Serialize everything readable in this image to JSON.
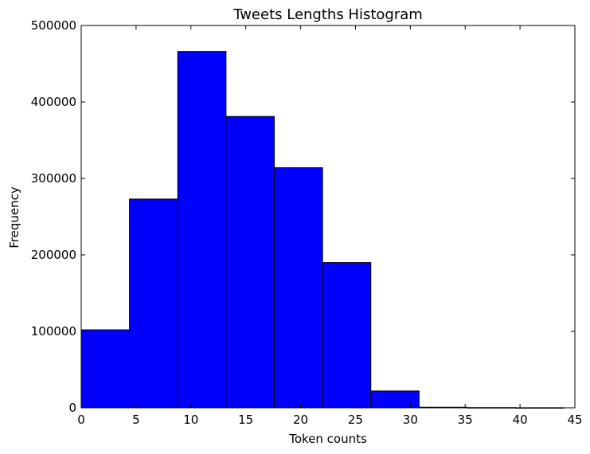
{
  "chart_data": {
    "type": "bar",
    "title": "Tweets Lengths Histogram",
    "xlabel": "Token counts",
    "ylabel": "Frequency",
    "xlim": [
      0,
      45
    ],
    "ylim": [
      0,
      500000
    ],
    "xticks": [
      0,
      5,
      10,
      15,
      20,
      25,
      30,
      35,
      40,
      45
    ],
    "yticks": [
      0,
      100000,
      200000,
      300000,
      400000,
      500000
    ],
    "bins": [
      {
        "start": 0.0,
        "end": 4.4,
        "value": 102000
      },
      {
        "start": 4.4,
        "end": 8.8,
        "value": 273000
      },
      {
        "start": 8.8,
        "end": 13.2,
        "value": 466000
      },
      {
        "start": 13.2,
        "end": 17.6,
        "value": 381000
      },
      {
        "start": 17.6,
        "end": 22.0,
        "value": 314000
      },
      {
        "start": 22.0,
        "end": 26.4,
        "value": 190000
      },
      {
        "start": 26.4,
        "end": 30.8,
        "value": 22000
      },
      {
        "start": 30.8,
        "end": 35.2,
        "value": 800
      },
      {
        "start": 35.2,
        "end": 39.6,
        "value": 300
      },
      {
        "start": 39.6,
        "end": 44.0,
        "value": 100
      }
    ],
    "grid": false,
    "bar_color": "#0000ff",
    "edge_color": "#000000"
  }
}
